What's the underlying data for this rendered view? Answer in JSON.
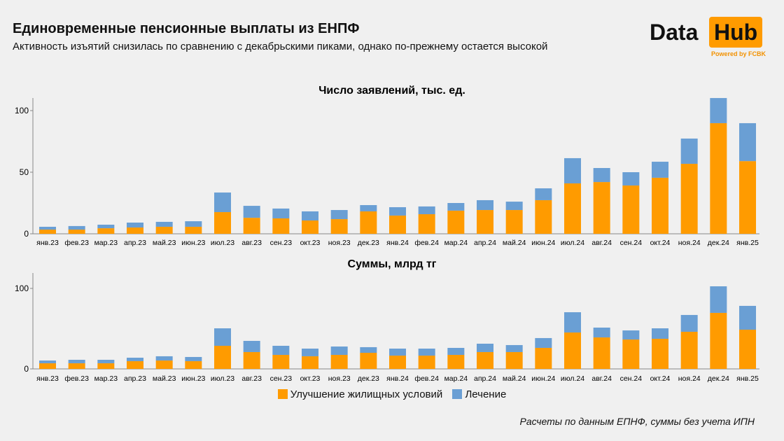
{
  "title": "Единовременные пенсионные выплаты из ЕНПФ",
  "subtitle": "Активность изъятий снизилась по сравнению с декабрьскими пиками, однако по-прежнему остается высокой",
  "logo": {
    "text1": "Data",
    "text2": "Hub",
    "tagline": "Powered by FCBK"
  },
  "note": "Расчеты по данным ЕПНФ, суммы без учета ИПН",
  "colors": {
    "orange": "#ff9b00",
    "blue": "#6a9fd4"
  },
  "legend": [
    "Улучшение жилищных условий",
    "Лечение"
  ],
  "chart_data": [
    {
      "type": "bar",
      "stacked": true,
      "title": "Число заявлений, тыс. ед.",
      "categories": [
        "янв.23",
        "фев.23",
        "мар.23",
        "апр.23",
        "май.23",
        "июн.23",
        "июл.23",
        "авг.23",
        "сен.23",
        "окт.23",
        "ноя.23",
        "дек.23",
        "янв.24",
        "фев.24",
        "мар.24",
        "апр.24",
        "май.24",
        "июн.24",
        "июл.24",
        "авг.24",
        "сен.24",
        "окт.24",
        "ноя.24",
        "дек.24",
        "янв.25"
      ],
      "yticks": [
        0,
        50,
        100
      ],
      "ylim": [
        0,
        110
      ],
      "series": [
        {
          "name": "Улучшение жилищных условий",
          "values": [
            3.4,
            3.4,
            4.5,
            5.1,
            5.7,
            5.7,
            17.6,
            13,
            12.5,
            10.8,
            11.9,
            18.2,
            14.8,
            15.9,
            18.8,
            19.3,
            19.3,
            27.3,
            40.9,
            42,
            39.2,
            45.5,
            56.8,
            89.8,
            59
          ]
        },
        {
          "name": "Лечение",
          "values": [
            2.3,
            2.9,
            2.9,
            4,
            4,
            4.5,
            15.9,
            9.7,
            8,
            7.4,
            7.4,
            5.1,
            6.8,
            6.3,
            6.2,
            8,
            6.8,
            9.6,
            20.5,
            11.4,
            10.8,
            13,
            20.5,
            20.4,
            30.8
          ]
        }
      ]
    },
    {
      "type": "bar",
      "stacked": true,
      "title": "Суммы, млрд тг",
      "categories": [
        "янв.23",
        "фев.23",
        "мар.23",
        "апр.23",
        "май.23",
        "июн.23",
        "июл.23",
        "авг.23",
        "сен.23",
        "окт.23",
        "ноя.23",
        "дек.23",
        "янв.24",
        "фев.24",
        "мар.24",
        "апр.24",
        "май.24",
        "июн.24",
        "июл.24",
        "авг.24",
        "сен.24",
        "окт.24",
        "ноя.24",
        "дек.24",
        "янв.25"
      ],
      "yticks": [
        0,
        100
      ],
      "ylim": [
        0,
        103
      ],
      "series": [
        {
          "name": "Улучшение жилищных условий",
          "values": [
            7,
            7,
            7,
            9.6,
            10.4,
            9.6,
            28.7,
            20.9,
            17.4,
            15.7,
            17.4,
            20,
            16.5,
            16.5,
            17.4,
            20.9,
            20.9,
            26.1,
            45.2,
            39.1,
            36.5,
            37.4,
            46.1,
            69.6,
            48.7
          ]
        },
        {
          "name": "Лечение",
          "values": [
            3.4,
            4.3,
            4.3,
            4.3,
            5.3,
            5.2,
            21.7,
            13.9,
            11.3,
            9.5,
            10.4,
            7,
            8.7,
            8.7,
            8.7,
            10.4,
            8.7,
            12.2,
            25.2,
            12.2,
            11.3,
            13,
            20.9,
            33,
            29.6
          ]
        }
      ]
    }
  ]
}
